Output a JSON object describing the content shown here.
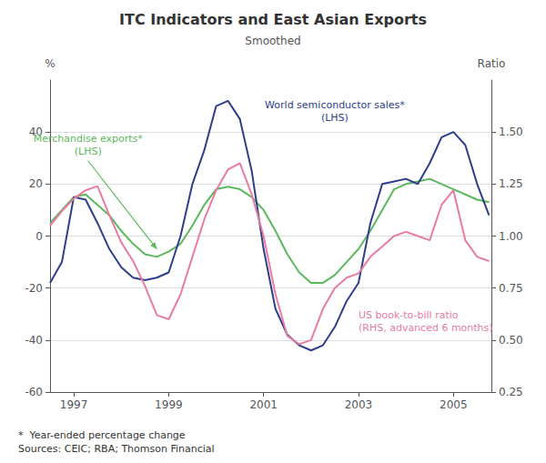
{
  "chart_data": {
    "type": "line",
    "title": "ITC Indicators and East Asian Exports",
    "subtitle": "Smoothed",
    "ylabel": "%",
    "y2label": "Ratio",
    "x": [
      1996.5,
      1996.75,
      1997.0,
      1997.25,
      1997.5,
      1997.75,
      1998.0,
      1998.25,
      1998.5,
      1998.75,
      1999.0,
      1999.25,
      1999.5,
      1999.75,
      2000.0,
      2000.25,
      2000.5,
      2000.75,
      2001.0,
      2001.25,
      2001.5,
      2001.75,
      2002.0,
      2002.25,
      2002.5,
      2002.75,
      2003.0,
      2003.25,
      2003.5,
      2003.75,
      2004.0,
      2004.25,
      2004.5,
      2004.75,
      2005.0,
      2005.25,
      2005.5,
      2005.75
    ],
    "series": [
      {
        "color": "#5cb85c",
        "values": [
          5,
          10,
          15,
          16,
          12,
          8,
          2,
          -3,
          -7,
          -8,
          -6,
          -3,
          4,
          12,
          18,
          19,
          18,
          15,
          10,
          2,
          -7,
          -14,
          -18,
          -18,
          -15,
          -10,
          -5,
          2,
          10,
          18,
          20,
          21,
          22,
          20,
          18,
          16,
          14,
          13
        ]
      },
      {
        "color": "#2c3e8c",
        "values": [
          -18,
          -10,
          15,
          14,
          5,
          -5,
          -12,
          -16,
          -17,
          -16,
          -14,
          0,
          20,
          33,
          50,
          52,
          45,
          25,
          -5,
          -28,
          -38,
          -42,
          -44,
          -42,
          -35,
          -25,
          -18,
          5,
          20,
          21,
          22,
          20,
          28,
          38,
          40,
          35,
          20,
          8
        ]
      },
      {
        "color": "#e87ca0",
        "axis": "y2",
        "values": [
          1.05,
          1.12,
          1.18,
          1.22,
          1.24,
          1.1,
          0.97,
          0.88,
          0.76,
          0.62,
          0.6,
          0.72,
          0.9,
          1.08,
          1.22,
          1.32,
          1.35,
          1.2,
          1.0,
          0.72,
          0.52,
          0.48,
          0.5,
          0.65,
          0.75,
          0.8,
          0.82,
          0.9,
          0.95,
          1.0,
          1.02,
          1.0,
          0.98,
          1.15,
          1.22,
          0.98,
          0.9,
          0.88
        ]
      }
    ],
    "xlim": [
      1996.5,
      2005.8
    ],
    "xticks": [
      1997,
      1999,
      2001,
      2003,
      2005
    ],
    "ylim": [
      -60,
      60
    ],
    "yticks": [
      -60,
      -40,
      -20,
      0,
      20,
      40
    ],
    "y2lim": [
      0.25,
      1.75
    ],
    "y2ticks": [
      0.25,
      {
        "value": 0.5,
        "label": "0.50"
      },
      0.75,
      {
        "value": 1.0,
        "label": "1.00"
      },
      1.25,
      {
        "value": 1.5,
        "label": "1.50"
      }
    ],
    "grid": true,
    "annotations": [
      {
        "text": "Merchandise exports*\n(LHS)",
        "color": "#5cb85c",
        "x": 1997.3,
        "y": 30,
        "arrow": [
          1998.75,
          -5
        ]
      },
      {
        "text": "World semiconductor sales*\n(LHS)",
        "color": "#2c3e8c",
        "x": 2002.5,
        "y": 53
      },
      {
        "text": "US book-to-bill ratio\n(RHS, advanced 6 months)",
        "color": "#e87ca0",
        "x": 2003.0,
        "y": -28
      }
    ],
    "footnotes": [
      "*  Year-ended percentage change",
      "Sources: CEIC; RBA; Thomson Financial"
    ]
  }
}
